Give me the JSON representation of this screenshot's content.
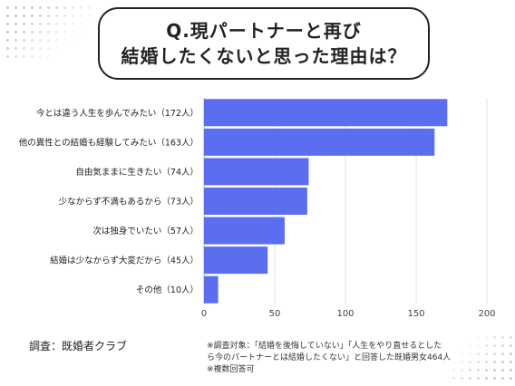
{
  "title": {
    "line1": "Q.現パートナーと再び",
    "line2": "結婚したくないと思った理由は？"
  },
  "chart_data": {
    "type": "bar",
    "orientation": "horizontal",
    "categories": [
      "今とは違う人生を歩んでみたい（172人）",
      "他の異性との結婚も経験してみたい（163人）",
      "自由気ままに生きたい（74人）",
      "少なからず不満もあるから（73人）",
      "次は独身でいたい（57人）",
      "結婚は少なからず大変だから（45人）",
      "その他（10人）"
    ],
    "values": [
      172,
      163,
      74,
      73,
      57,
      45,
      10
    ],
    "xlim": [
      0,
      200
    ],
    "xticks": [
      0,
      50,
      100,
      150,
      200
    ],
    "grid": true,
    "bar_color": "#5b6ef0"
  },
  "footer": {
    "source": "調査：既婚者クラブ",
    "note_line1": "※調査対象：「結婚を後悔していない」「人生をやり直せるとした",
    "note_line2": "ら今のパートナーとは結婚したくない」と回答した既婚男女464人",
    "note_line3": "※複数回答可"
  }
}
